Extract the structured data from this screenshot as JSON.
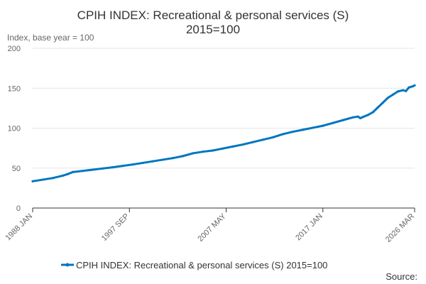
{
  "chart_data": {
    "type": "line",
    "title_lines": [
      "CPIH INDEX: Recreational & personal services (S)",
      "2015=100"
    ],
    "ylabel": "Index, base year = 100",
    "xlabel": "",
    "ylim": [
      0,
      200
    ],
    "y_ticks": [
      "0",
      "50",
      "100",
      "150",
      "200"
    ],
    "x_ticks": [
      {
        "label": "1988 JAN",
        "t": 1988.0
      },
      {
        "label": "1997 SEP",
        "t": 1997.667
      },
      {
        "label": "2007 MAY",
        "t": 2007.333
      },
      {
        "label": "2017 JAN",
        "t": 2017.0
      },
      {
        "label": "2026 MAR",
        "t": 2026.167
      }
    ],
    "x_range": [
      1988.0,
      2026.167
    ],
    "grid": true,
    "legend_position": "bottom",
    "series": [
      {
        "name": "CPIH INDEX: Recreational & personal services (S) 2015=100",
        "color": "#0076c0",
        "points": [
          [
            1988.0,
            33.5
          ],
          [
            1989.0,
            35.5
          ],
          [
            1990.0,
            37.5
          ],
          [
            1991.0,
            40.5
          ],
          [
            1991.5,
            42.5
          ],
          [
            1992.0,
            45.0
          ],
          [
            1993.0,
            46.5
          ],
          [
            1994.0,
            48.0
          ],
          [
            1995.0,
            49.5
          ],
          [
            1996.0,
            51.0
          ],
          [
            1997.0,
            52.8
          ],
          [
            1998.0,
            54.5
          ],
          [
            1999.0,
            56.5
          ],
          [
            2000.0,
            58.5
          ],
          [
            2001.0,
            60.5
          ],
          [
            2002.0,
            62.5
          ],
          [
            2003.0,
            65.0
          ],
          [
            2004.0,
            68.5
          ],
          [
            2005.0,
            70.5
          ],
          [
            2006.0,
            72.0
          ],
          [
            2007.0,
            74.5
          ],
          [
            2008.0,
            77.0
          ],
          [
            2009.0,
            79.5
          ],
          [
            2010.0,
            82.5
          ],
          [
            2011.0,
            85.5
          ],
          [
            2012.0,
            88.5
          ],
          [
            2013.0,
            92.5
          ],
          [
            2014.0,
            95.5
          ],
          [
            2015.0,
            98.0
          ],
          [
            2016.0,
            100.5
          ],
          [
            2017.0,
            103.0
          ],
          [
            2018.0,
            106.5
          ],
          [
            2019.0,
            110.0
          ],
          [
            2020.0,
            113.5
          ],
          [
            2020.5,
            114.5
          ],
          [
            2020.75,
            112.5
          ],
          [
            2021.0,
            114.0
          ],
          [
            2021.5,
            116.5
          ],
          [
            2022.0,
            120.0
          ],
          [
            2022.5,
            126.0
          ],
          [
            2023.0,
            132.0
          ],
          [
            2023.5,
            138.0
          ],
          [
            2024.0,
            142.0
          ],
          [
            2024.5,
            146.0
          ],
          [
            2025.0,
            147.5
          ],
          [
            2025.3,
            146.5
          ],
          [
            2025.6,
            151.0
          ],
          [
            2026.0,
            152.5
          ],
          [
            2026.167,
            153.5
          ]
        ]
      }
    ]
  },
  "source_label": "Source:"
}
